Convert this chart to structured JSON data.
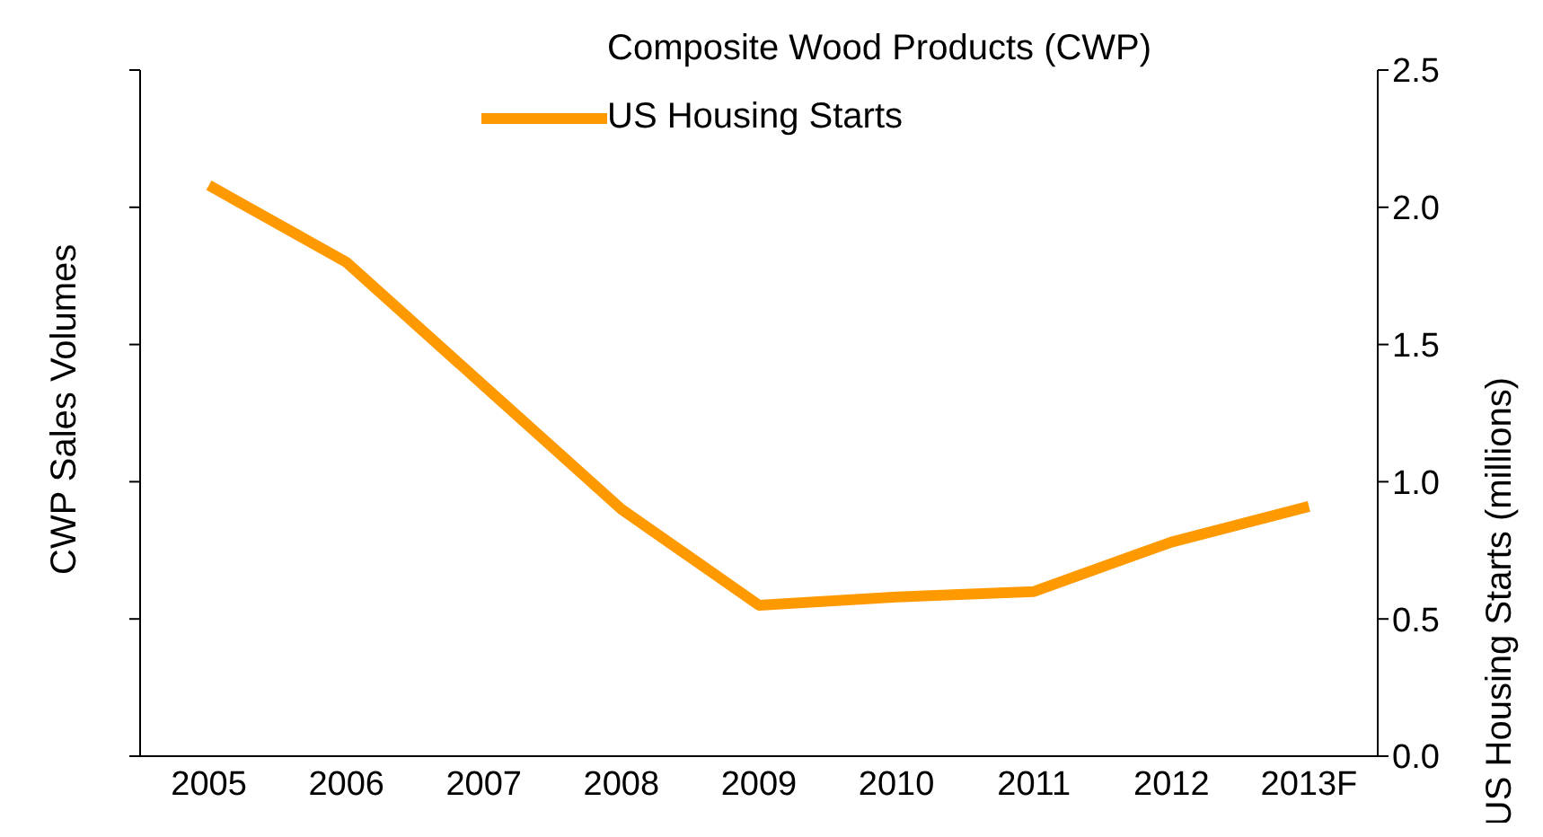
{
  "chart_data": {
    "type": "line",
    "ylabel": "CWP Sales Volumes",
    "y2label": "US Housing Starts (millions)",
    "categories": [
      "2005",
      "2006",
      "2007",
      "2008",
      "2009",
      "2010",
      "2011",
      "2012",
      "2013F"
    ],
    "series": [
      {
        "name": "US Housing Starts",
        "color": "#ff9900",
        "axis": "y2",
        "values": [
          2.08,
          1.8,
          1.35,
          0.9,
          0.55,
          0.58,
          0.6,
          0.78,
          0.91
        ]
      }
    ],
    "tick_labels": "y2",
    "y2lim": [
      0,
      2.5
    ],
    "y2ticks": [
      {
        "value": 0,
        "label": "0.0"
      },
      {
        "value": 0.5,
        "label": "0.5"
      },
      {
        "value": 1,
        "label": "1.0"
      },
      {
        "value": 1.5,
        "label": "1.5"
      },
      {
        "value": 2,
        "label": "2.0"
      },
      {
        "value": 2.5,
        "label": "2.5"
      }
    ],
    "annotations": [
      "Composite Wood Products (CWP)"
    ],
    "legend": "top",
    "grid": false,
    "marker": "none",
    "line_style": "solid"
  }
}
